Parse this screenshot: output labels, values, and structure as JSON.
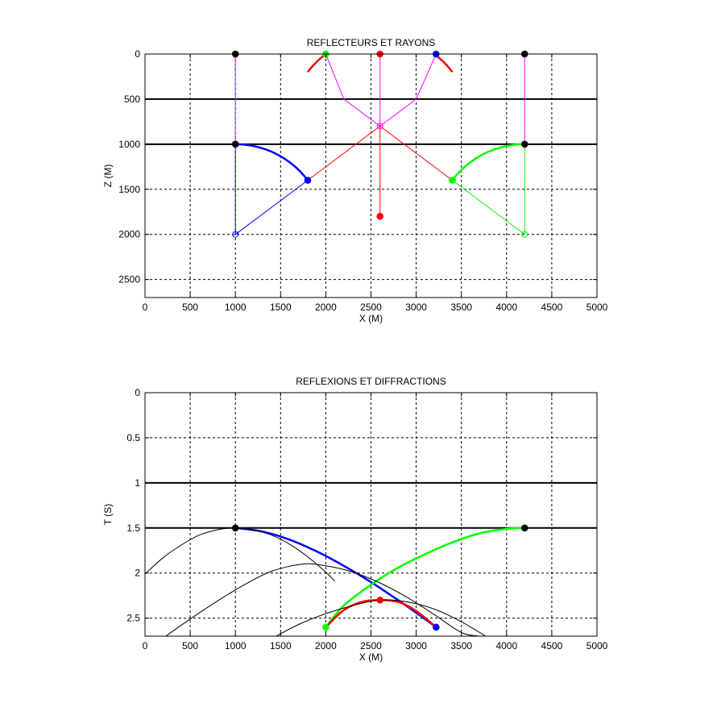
{
  "chart_data": [
    {
      "type": "line",
      "title": "REFLECTEURS ET RAYONS",
      "xlabel": "X (M)",
      "ylabel": "Z (M)",
      "xlim": [
        0,
        5000
      ],
      "ylim": [
        0,
        2700
      ],
      "y_reversed": true,
      "grid": true,
      "x_ticks": [
        0,
        500,
        1000,
        1500,
        2000,
        2500,
        3000,
        3500,
        4000,
        4500,
        5000
      ],
      "y_ticks": [
        0,
        500,
        1000,
        1500,
        2000,
        2500
      ],
      "x_tick_labels": [
        "0",
        "500",
        "1000",
        "1500",
        "2000",
        "2500",
        "3000",
        "3500",
        "4000",
        "4500",
        "5000"
      ],
      "y_tick_labels": [
        "0",
        "500",
        "1000",
        "1500",
        "2000",
        "2500"
      ],
      "reflectors": [
        500,
        1000
      ],
      "curves": [
        {
          "color": "#0000ff",
          "kind": "arc",
          "cx": 1000,
          "cz": 2000,
          "r": 1000,
          "from_deg": 90,
          "to_deg": 36.87
        },
        {
          "color": "#ff0000",
          "kind": "arc",
          "cx": 2600,
          "cz": 800,
          "r": 1000,
          "from_deg": 143.13,
          "to_deg": 36.87
        },
        {
          "color": "#00ff00",
          "kind": "arc",
          "cx": 4200,
          "cz": 2000,
          "r": 1000,
          "from_deg": 143.13,
          "to_deg": 90
        }
      ],
      "rays": [
        {
          "color": "#ff00ff",
          "points": [
            [
              1000,
              0
            ],
            [
              1000,
              1000
            ]
          ]
        },
        {
          "color": "#ff00ff",
          "points": [
            [
              4200,
              0
            ],
            [
              4200,
              1000
            ]
          ]
        },
        {
          "color": "#ff00ff",
          "points": [
            [
              2000,
              0
            ],
            [
              2200,
              500
            ],
            [
              2600,
              800
            ],
            [
              3000,
              500
            ],
            [
              3220,
              0
            ]
          ]
        },
        {
          "color": "#ff00ff",
          "points": [
            [
              2600,
              0
            ],
            [
              2600,
              800
            ]
          ]
        },
        {
          "color": "#0000ff",
          "points": [
            [
              1000,
              1000
            ],
            [
              1000,
              2000
            ],
            [
              1800,
              1400
            ]
          ]
        },
        {
          "color": "#00ff00",
          "points": [
            [
              4200,
              1000
            ],
            [
              4200,
              2000
            ],
            [
              3400,
              1400
            ]
          ]
        },
        {
          "color": "#ff0000",
          "points": [
            [
              1800,
              1400
            ],
            [
              2600,
              800
            ],
            [
              3400,
              1400
            ]
          ]
        },
        {
          "color": "#ff0000",
          "points": [
            [
              2600,
              800
            ],
            [
              2600,
              1800
            ]
          ]
        }
      ],
      "markers": [
        {
          "x": 1000,
          "y": 0,
          "color": "#000000",
          "style": "filled"
        },
        {
          "x": 2000,
          "y": 0,
          "color": "#00ff00",
          "style": "filled"
        },
        {
          "x": 2600,
          "y": 0,
          "color": "#ff0000",
          "style": "filled"
        },
        {
          "x": 3220,
          "y": 0,
          "color": "#0000ff",
          "style": "filled"
        },
        {
          "x": 4200,
          "y": 0,
          "color": "#000000",
          "style": "filled"
        },
        {
          "x": 1000,
          "y": 1000,
          "color": "#000000",
          "style": "filled"
        },
        {
          "x": 4200,
          "y": 1000,
          "color": "#000000",
          "style": "filled"
        },
        {
          "x": 1800,
          "y": 1400,
          "color": "#0000ff",
          "style": "filled"
        },
        {
          "x": 3400,
          "y": 1400,
          "color": "#00ff00",
          "style": "filled"
        },
        {
          "x": 2600,
          "y": 1800,
          "color": "#ff0000",
          "style": "filled"
        },
        {
          "x": 2600,
          "y": 800,
          "color": "#ff00ff",
          "style": "open"
        },
        {
          "x": 1000,
          "y": 2000,
          "color": "#0000ff",
          "style": "open"
        },
        {
          "x": 4200,
          "y": 2000,
          "color": "#00ff00",
          "style": "open"
        }
      ]
    },
    {
      "type": "line",
      "title": "REFLEXIONS ET DIFFRACTIONS",
      "xlabel": "X (M)",
      "ylabel": "T (S)",
      "xlim": [
        0,
        5000
      ],
      "ylim": [
        0,
        2.7
      ],
      "y_reversed": true,
      "grid": true,
      "x_ticks": [
        0,
        500,
        1000,
        1500,
        2000,
        2500,
        3000,
        3500,
        4000,
        4500,
        5000
      ],
      "y_ticks": [
        0,
        0.5,
        1,
        1.5,
        2,
        2.5
      ],
      "x_tick_labels": [
        "0",
        "500",
        "1000",
        "1500",
        "2000",
        "2500",
        "3000",
        "3500",
        "4000",
        "4500",
        "5000"
      ],
      "y_tick_labels": [
        "0",
        "0.5",
        "1",
        "1.5",
        "2",
        "2.5"
      ],
      "reflectors": [
        1,
        1.5
      ],
      "series": [
        {
          "color": "#0000ff",
          "width": 2.5,
          "x": [
            1000,
            1300,
            1600,
            1900,
            2200,
            2500,
            2800,
            3000,
            3220
          ],
          "y": [
            1.5,
            1.54,
            1.63,
            1.76,
            1.92,
            2.1,
            2.3,
            2.44,
            2.6
          ]
        },
        {
          "color": "#00ff00",
          "width": 2.5,
          "x": [
            2000,
            2200,
            2500,
            2800,
            3100,
            3400,
            3700,
            4000,
            4200
          ],
          "y": [
            2.6,
            2.36,
            2.13,
            1.94,
            1.79,
            1.66,
            1.56,
            1.51,
            1.5
          ]
        },
        {
          "color": "#ff0000",
          "width": 2.5,
          "x": [
            2000,
            2200,
            2400,
            2600,
            2800,
            3000,
            3220
          ],
          "y": [
            2.6,
            2.41,
            2.32,
            2.3,
            2.32,
            2.42,
            2.6
          ]
        },
        {
          "color": "#000000",
          "width": 1,
          "x": [
            0,
            200,
            400,
            600,
            800,
            1000,
            1200,
            1400,
            1600,
            1800,
            2000,
            2100
          ],
          "y": [
            2.01,
            1.83,
            1.69,
            1.58,
            1.52,
            1.5,
            1.52,
            1.58,
            1.68,
            1.82,
            1.99,
            2.09
          ]
        },
        {
          "color": "#000000",
          "width": 1,
          "x": [
            230,
            500,
            800,
            1100,
            1400,
            1750,
            2000,
            2300,
            2600,
            2900,
            3200,
            3500,
            3700
          ],
          "y": [
            2.7,
            2.51,
            2.31,
            2.13,
            1.98,
            1.9,
            1.92,
            1.99,
            2.11,
            2.27,
            2.46,
            2.66,
            2.7
          ]
        },
        {
          "color": "#000000",
          "width": 1,
          "x": [
            1450,
            1700,
            2000,
            2300,
            2600,
            2900,
            3200,
            3500,
            3800
          ],
          "y": [
            2.7,
            2.57,
            2.45,
            2.36,
            2.3,
            2.32,
            2.4,
            2.54,
            2.72
          ]
        }
      ],
      "markers": [
        {
          "x": 1000,
          "y": 1.5,
          "color": "#000000",
          "style": "filled"
        },
        {
          "x": 4200,
          "y": 1.5,
          "color": "#000000",
          "style": "filled"
        },
        {
          "x": 2600,
          "y": 2.3,
          "color": "#ff0000",
          "style": "filled"
        },
        {
          "x": 2000,
          "y": 2.6,
          "color": "#00ff00",
          "style": "filled"
        },
        {
          "x": 3220,
          "y": 2.6,
          "color": "#0000ff",
          "style": "filled"
        }
      ]
    }
  ]
}
